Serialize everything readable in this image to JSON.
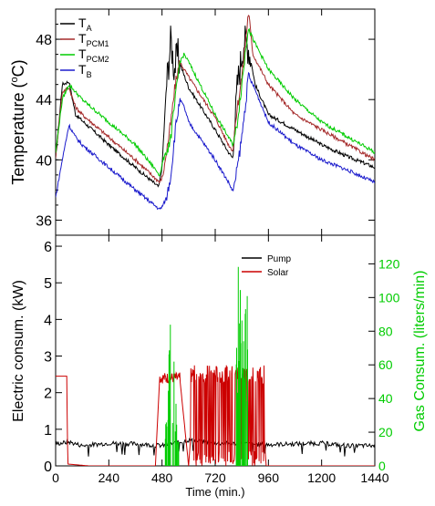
{
  "chart_data": [
    {
      "type": "line",
      "ylabel": "Temperature (°C)",
      "ylabel_base": "Temperature (",
      "ylabel_sup": "o",
      "ylabel_end": "C)",
      "xlim": [
        0,
        1440
      ],
      "ylim": [
        35,
        50
      ],
      "yticks": [
        36,
        40,
        44,
        48
      ],
      "legend": "top-left",
      "series": [
        {
          "name": "T_A",
          "label_main": "T",
          "label_sub": "A",
          "color": "#000000",
          "x": [
            0,
            30,
            60,
            90,
            120,
            240,
            360,
            465,
            480,
            500,
            520,
            535,
            550,
            570,
            600,
            720,
            780,
            800,
            820,
            850,
            870,
            900,
            960,
            1080,
            1200,
            1320,
            1440
          ],
          "y": [
            40.0,
            45.0,
            45.2,
            43.0,
            42.6,
            41.0,
            39.5,
            38.2,
            39.5,
            45.0,
            48.0,
            46.0,
            47.0,
            46.0,
            44.8,
            42.0,
            40.5,
            40.1,
            45.0,
            48.0,
            47.5,
            45.0,
            43.0,
            42.0,
            41.0,
            40.2,
            39.5
          ]
        },
        {
          "name": "T_PCM1",
          "label_main": "T",
          "label_sub": "PCM1",
          "color": "#a52a2a",
          "x": [
            0,
            30,
            60,
            90,
            120,
            240,
            360,
            470,
            485,
            500,
            520,
            540,
            560,
            580,
            600,
            720,
            780,
            800,
            815,
            840,
            870,
            890,
            960,
            1080,
            1200,
            1320,
            1440
          ],
          "y": [
            40.2,
            44.5,
            44.8,
            43.5,
            43.0,
            41.5,
            40.0,
            38.5,
            39.0,
            40.5,
            42.5,
            45.0,
            46.5,
            46.0,
            45.5,
            42.8,
            41.0,
            40.6,
            43.0,
            45.5,
            49.8,
            47.0,
            45.0,
            43.0,
            42.0,
            41.0,
            40.0
          ]
        },
        {
          "name": "T_PCM2",
          "label_main": "T",
          "label_sub": "PCM2",
          "color": "#00cc00",
          "x": [
            0,
            30,
            60,
            90,
            120,
            240,
            360,
            470,
            485,
            500,
            520,
            540,
            560,
            580,
            600,
            720,
            780,
            800,
            815,
            840,
            870,
            890,
            960,
            1080,
            1200,
            1320,
            1440
          ],
          "y": [
            40.5,
            44.0,
            45.0,
            44.5,
            44.0,
            42.5,
            41.0,
            39.0,
            40.0,
            40.5,
            41.5,
            44.0,
            46.5,
            47.0,
            46.5,
            43.0,
            41.5,
            41.0,
            42.0,
            45.0,
            49.0,
            48.0,
            46.0,
            44.0,
            42.5,
            41.5,
            40.5
          ]
        },
        {
          "name": "T_B",
          "label_main": "T",
          "label_sub": "B",
          "color": "#1a1acc",
          "x": [
            0,
            30,
            60,
            90,
            120,
            240,
            360,
            470,
            485,
            500,
            520,
            540,
            560,
            580,
            600,
            720,
            780,
            800,
            815,
            840,
            870,
            890,
            960,
            1080,
            1200,
            1320,
            1440
          ],
          "y": [
            37.5,
            40.0,
            42.3,
            41.5,
            41.0,
            39.5,
            38.0,
            36.7,
            37.0,
            37.5,
            39.0,
            42.0,
            44.0,
            43.5,
            42.5,
            40.0,
            38.5,
            37.9,
            39.0,
            41.5,
            45.5,
            45.0,
            42.5,
            41.0,
            40.0,
            39.3,
            38.5
          ]
        }
      ]
    },
    {
      "type": "line",
      "xlabel": "Time (min.)",
      "ylabel": "Electric consum. (kW)",
      "y2label": "Gas Consum. (liters/min)",
      "xlim": [
        0,
        1440
      ],
      "ylim": [
        0,
        6.3
      ],
      "y2lim": [
        0,
        137
      ],
      "xticks": [
        0,
        240,
        480,
        720,
        960,
        1200,
        1440
      ],
      "yticks": [
        0,
        1,
        2,
        3,
        4,
        5,
        6
      ],
      "y2ticks": [
        0,
        20,
        40,
        60,
        80,
        100,
        120
      ],
      "legend": "top-right",
      "series": [
        {
          "name": "Pump",
          "color": "#000000",
          "axis": "left",
          "x": [
            0,
            60,
            120,
            240,
            360,
            480,
            600,
            720,
            840,
            960,
            1080,
            1200,
            1320,
            1440
          ],
          "y": [
            0.6,
            0.65,
            0.55,
            0.62,
            0.6,
            0.55,
            0.7,
            0.62,
            0.6,
            0.58,
            0.6,
            0.62,
            0.55,
            0.55
          ]
        },
        {
          "name": "Solar",
          "color": "#cc0000",
          "axis": "left",
          "x": [
            0,
            50,
            55,
            150,
            450,
            470,
            560,
            600,
            630,
            680,
            720,
            760,
            800,
            840,
            880,
            920,
            950,
            1440
          ],
          "y": [
            2.45,
            2.45,
            0.05,
            0.0,
            0.0,
            2.5,
            2.4,
            0.0,
            2.6,
            0.3,
            2.7,
            0.2,
            2.6,
            2.7,
            2.9,
            2.7,
            0.0,
            0.0
          ]
        },
        {
          "name": "",
          "color": "#00cc00",
          "axis": "right",
          "x": [
            500,
            510,
            520,
            530,
            540,
            550,
            820,
            835,
            850,
            865
          ],
          "y": [
            30,
            68,
            100,
            80,
            55,
            20,
            130,
            115,
            105,
            130
          ]
        }
      ]
    }
  ]
}
